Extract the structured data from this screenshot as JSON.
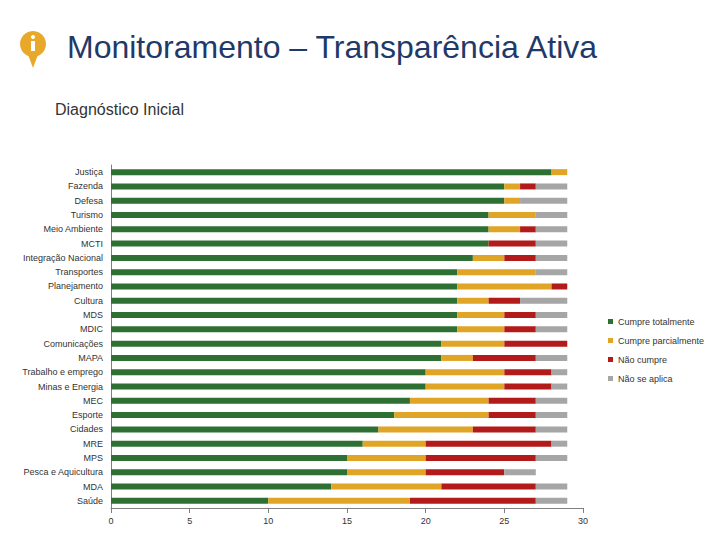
{
  "chart_data": {
    "type": "bar",
    "title": "Monitoramento – Transparência Ativa",
    "subtitle": "Diagnóstico Inicial",
    "orientation": "horizontal",
    "stacked": true,
    "grid": false,
    "legend": "right",
    "categories": [
      "Justiça",
      "Fazenda",
      "Defesa",
      "Turismo",
      "Meio Ambiente",
      "MCTI",
      "Integração Nacional",
      "Transportes",
      "Planejamento",
      "Cultura",
      "MDS",
      "MDIC",
      "Comunicações",
      "MAPA",
      "Trabalho e emprego",
      "Minas e Energia",
      "MEC",
      "Esporte",
      "Cidades",
      "MRE",
      "MPS",
      "Pesca e Aquicultura",
      "MDA",
      "Saúde"
    ],
    "series": [
      {
        "name": "Cumpre totalmente",
        "color": "#2e7033",
        "values": [
          28,
          25,
          25,
          24,
          24,
          24,
          23,
          22,
          22,
          22,
          22,
          22,
          21,
          21,
          20,
          20,
          19,
          18,
          17,
          16,
          15,
          15,
          14,
          10
        ]
      },
      {
        "name": "Cumpre parcialmente",
        "color": "#e0a526",
        "values": [
          1,
          1,
          1,
          3,
          2,
          0,
          2,
          5,
          6,
          2,
          3,
          3,
          4,
          2,
          5,
          5,
          5,
          6,
          6,
          4,
          5,
          5,
          7,
          9
        ]
      },
      {
        "name": "Não cumpre",
        "color": "#b31b1b",
        "values": [
          0,
          1,
          0,
          0,
          1,
          3,
          2,
          0,
          1,
          2,
          2,
          2,
          4,
          4,
          3,
          3,
          3,
          3,
          4,
          8,
          7,
          5,
          6,
          8
        ]
      },
      {
        "name": "Não se aplica",
        "color": "#a6a6a6",
        "values": [
          0,
          2,
          3,
          2,
          2,
          2,
          2,
          2,
          0,
          3,
          2,
          2,
          0,
          2,
          1,
          1,
          2,
          2,
          2,
          1,
          2,
          2,
          2,
          2
        ]
      }
    ],
    "xlim": [
      0,
      30
    ],
    "xticks": [
      0,
      5,
      10,
      15,
      20,
      25,
      30
    ]
  }
}
